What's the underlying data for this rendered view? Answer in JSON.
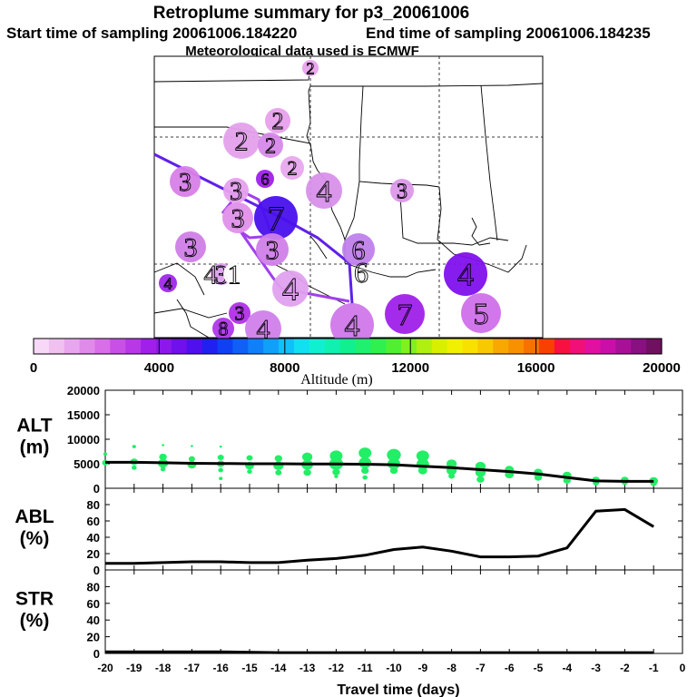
{
  "header": {
    "title": "Retroplume summary for p3_20061006",
    "start_label": "Start time of sampling 20061006.184220",
    "end_label": "End time of sampling 20061006.184235",
    "met_label": "Meteorological data used is ECMWF"
  },
  "colorbar": {
    "xlabel": "Altitude (m)",
    "tick_labels": [
      "0",
      "4000",
      "8000",
      "12000",
      "16000",
      "20000"
    ],
    "range": [
      0,
      20000
    ],
    "colors": [
      "#f7d8f7",
      "#f0c0f0",
      "#e8a6ee",
      "#e08aea",
      "#d86ee8",
      "#c850e6",
      "#b838e8",
      "#a020ea",
      "#8c18ea",
      "#7010ec",
      "#5010ee",
      "#2020f0",
      "#1040f4",
      "#1060f6",
      "#1080f8",
      "#10a0fa",
      "#10c0f8",
      "#10e0f0",
      "#10f0d0",
      "#10f0b0",
      "#10f090",
      "#20f070",
      "#30f050",
      "#50f030",
      "#80f020",
      "#b0f010",
      "#d8f000",
      "#f0f000",
      "#f8e000",
      "#f8c800",
      "#f8a800",
      "#f89000",
      "#f87000",
      "#f84000",
      "#f81040",
      "#f01078",
      "#e010a0",
      "#c810a8",
      "#a81098",
      "#881080",
      "#701060"
    ]
  },
  "map": {
    "plume_labels": [
      {
        "n": "2",
        "color": "#e9a2ec"
      },
      {
        "n": "2",
        "color": "#e8a0ec"
      },
      {
        "n": "2",
        "color": "#e4a0ec"
      },
      {
        "n": "2",
        "color": "#d888ea"
      },
      {
        "n": "2",
        "color": "#e8a8ee"
      },
      {
        "n": "3",
        "color": "#d880e8"
      },
      {
        "n": "3",
        "color": "#e6a0ee"
      },
      {
        "n": "6",
        "color": "#a020ea"
      },
      {
        "n": "4",
        "color": "#d890ea"
      },
      {
        "n": "7",
        "color": "#4a10ee"
      },
      {
        "n": "3",
        "color": "#e090ea"
      },
      {
        "n": "3",
        "color": "#d07ee8"
      },
      {
        "n": "3",
        "color": "#d080e8"
      },
      {
        "n": "6",
        "color": "#c080ec"
      },
      {
        "n": "3",
        "color": "#dc98ea"
      },
      {
        "n": "4",
        "color": "#e0a0ee"
      },
      {
        "n": "4",
        "color": "#a028ea"
      },
      {
        "n": "3",
        "color": "#dca0ee"
      },
      {
        "n": "1",
        "color": "#ffffff"
      },
      {
        "n": "4",
        "color": "#ffffff"
      },
      {
        "n": "6",
        "color": "#ffffff"
      },
      {
        "n": "3",
        "color": "#b030e8"
      },
      {
        "n": "4",
        "color": "#d080ea"
      },
      {
        "n": "4",
        "color": "#d078ea"
      },
      {
        "n": "7",
        "color": "#a020ea"
      },
      {
        "n": "5",
        "color": "#d070ea"
      },
      {
        "n": "4",
        "color": "#8010ec"
      },
      {
        "n": "8",
        "color": "#b038e8"
      }
    ]
  },
  "chart_data": [
    {
      "type": "scatter+line",
      "panel": "ALT",
      "ylabel": "ALT\n(m)",
      "ylabel_lines": [
        "ALT",
        "(m)"
      ],
      "ylim": [
        0,
        20000
      ],
      "yticks": [
        0,
        5000,
        10000,
        15000,
        20000
      ],
      "ytick_labels": [
        "0",
        "5000",
        "10000",
        "15000",
        "20000"
      ],
      "xlim": [
        -20,
        0
      ],
      "line": {
        "x": [
          -20,
          -19,
          -18,
          -17,
          -16,
          -15,
          -14,
          -13,
          -12,
          -11,
          -10,
          -9,
          -8,
          -7,
          -6,
          -5,
          -4,
          -3,
          -2,
          -1
        ],
        "y": [
          5300,
          5300,
          5200,
          5100,
          5050,
          5000,
          5000,
          4950,
          4950,
          4900,
          4800,
          4500,
          4200,
          3800,
          3400,
          2900,
          2200,
          1500,
          1400,
          1400
        ]
      },
      "points": [
        {
          "x": -20,
          "y": 7000,
          "s": 1.5
        },
        {
          "x": -20,
          "y": 5200,
          "s": 2.5
        },
        {
          "x": -19,
          "y": 8500,
          "s": 1.5
        },
        {
          "x": -19,
          "y": 5400,
          "s": 3
        },
        {
          "x": -19,
          "y": 4200,
          "s": 2
        },
        {
          "x": -18,
          "y": 8800,
          "s": 1
        },
        {
          "x": -18,
          "y": 6400,
          "s": 3
        },
        {
          "x": -18,
          "y": 5100,
          "s": 4
        },
        {
          "x": -18,
          "y": 3900,
          "s": 2
        },
        {
          "x": -17,
          "y": 8600,
          "s": 1
        },
        {
          "x": -17,
          "y": 6000,
          "s": 2.5
        },
        {
          "x": -17,
          "y": 4800,
          "s": 3.5
        },
        {
          "x": -16,
          "y": 8500,
          "s": 1
        },
        {
          "x": -16,
          "y": 6300,
          "s": 2.5
        },
        {
          "x": -16,
          "y": 5000,
          "s": 3
        },
        {
          "x": -16,
          "y": 3700,
          "s": 2
        },
        {
          "x": -16,
          "y": 2000,
          "s": 1.5
        },
        {
          "x": -15,
          "y": 6200,
          "s": 2.5
        },
        {
          "x": -15,
          "y": 4600,
          "s": 3.5
        },
        {
          "x": -15,
          "y": 3400,
          "s": 2
        },
        {
          "x": -14,
          "y": 6100,
          "s": 3
        },
        {
          "x": -14,
          "y": 4600,
          "s": 4
        },
        {
          "x": -14,
          "y": 3200,
          "s": 2.5
        },
        {
          "x": -13,
          "y": 6400,
          "s": 4
        },
        {
          "x": -13,
          "y": 4800,
          "s": 4.5
        },
        {
          "x": -13,
          "y": 3200,
          "s": 3
        },
        {
          "x": -12,
          "y": 6600,
          "s": 5
        },
        {
          "x": -12,
          "y": 5000,
          "s": 5.5
        },
        {
          "x": -12,
          "y": 3300,
          "s": 3
        },
        {
          "x": -12,
          "y": 2400,
          "s": 1.5
        },
        {
          "x": -11,
          "y": 7200,
          "s": 5
        },
        {
          "x": -11,
          "y": 5200,
          "s": 5
        },
        {
          "x": -11,
          "y": 3600,
          "s": 3
        },
        {
          "x": -11,
          "y": 2200,
          "s": 2
        },
        {
          "x": -10,
          "y": 6800,
          "s": 5.5
        },
        {
          "x": -10,
          "y": 5000,
          "s": 5
        },
        {
          "x": -10,
          "y": 3600,
          "s": 3
        },
        {
          "x": -9,
          "y": 6600,
          "s": 5
        },
        {
          "x": -9,
          "y": 4900,
          "s": 5
        },
        {
          "x": -9,
          "y": 3600,
          "s": 3.5
        },
        {
          "x": -8,
          "y": 5000,
          "s": 4
        },
        {
          "x": -8,
          "y": 3600,
          "s": 4
        },
        {
          "x": -8,
          "y": 2500,
          "s": 2.5
        },
        {
          "x": -7,
          "y": 4500,
          "s": 4
        },
        {
          "x": -7,
          "y": 3200,
          "s": 4
        },
        {
          "x": -7,
          "y": 1800,
          "s": 3
        },
        {
          "x": -6,
          "y": 3800,
          "s": 3.5
        },
        {
          "x": -6,
          "y": 2800,
          "s": 3.5
        },
        {
          "x": -5,
          "y": 3200,
          "s": 3.5
        },
        {
          "x": -5,
          "y": 2200,
          "s": 3
        },
        {
          "x": -4,
          "y": 2600,
          "s": 3.5
        },
        {
          "x": -4,
          "y": 1600,
          "s": 3
        },
        {
          "x": -3,
          "y": 1700,
          "s": 3
        },
        {
          "x": -3,
          "y": 1100,
          "s": 2.5
        },
        {
          "x": -2,
          "y": 1700,
          "s": 3
        },
        {
          "x": -2,
          "y": 1200,
          "s": 2.5
        },
        {
          "x": -1,
          "y": 1500,
          "s": 3.5
        },
        {
          "x": -1,
          "y": 1000,
          "s": 2.5
        }
      ]
    },
    {
      "type": "line",
      "panel": "ABL",
      "ylabel_lines": [
        "ABL",
        "(%)"
      ],
      "ylim": [
        0,
        100
      ],
      "yticks": [
        0,
        20,
        40,
        60,
        80
      ],
      "ytick_labels": [
        "0",
        "20",
        "40",
        "60",
        "80"
      ],
      "xlim": [
        -20,
        0
      ],
      "line": {
        "x": [
          -20,
          -19,
          -18,
          -17,
          -16,
          -15,
          -14,
          -13,
          -12,
          -11,
          -10,
          -9,
          -8,
          -7,
          -6,
          -5,
          -4,
          -3,
          -2,
          -1
        ],
        "y": [
          8,
          8,
          9,
          10,
          10,
          9,
          9,
          12,
          14,
          18,
          25,
          28,
          23,
          16,
          16,
          17,
          27,
          72,
          74,
          53
        ]
      }
    },
    {
      "type": "line",
      "panel": "STR",
      "ylabel_lines": [
        "STR",
        "(%)"
      ],
      "ylim": [
        0,
        100
      ],
      "yticks": [
        0,
        20,
        40,
        60,
        80
      ],
      "ytick_labels": [
        "0",
        "20",
        "40",
        "60",
        "80"
      ],
      "xlim": [
        -20,
        0
      ],
      "xlabel": "Travel time (days)",
      "xticks": [
        -20,
        -19,
        -18,
        -17,
        -16,
        -15,
        -14,
        -13,
        -12,
        -11,
        -10,
        -9,
        -8,
        -7,
        -6,
        -5,
        -4,
        -3,
        -2,
        -1,
        0
      ],
      "xtick_labels": [
        "-20",
        "-19",
        "-18",
        "-17",
        "-16",
        "-15",
        "-14",
        "-13",
        "-12",
        "-11",
        "-10",
        "-9",
        "-8",
        "-7",
        "-6",
        "-5",
        "-4",
        "-3",
        "-2",
        "-1",
        "0"
      ],
      "line": {
        "x": [
          -20,
          -18,
          -16,
          -14,
          -12,
          -10,
          -8,
          -6,
          -4,
          -2,
          -1
        ],
        "y": [
          2,
          2,
          2,
          1,
          1,
          1,
          1,
          1,
          1,
          1,
          1
        ]
      }
    }
  ],
  "colors": {
    "point_color": "#22ee66",
    "line_color": "#000000",
    "trajectory_color": "#6020e8",
    "trajectory_color_2": "#a040ec"
  }
}
